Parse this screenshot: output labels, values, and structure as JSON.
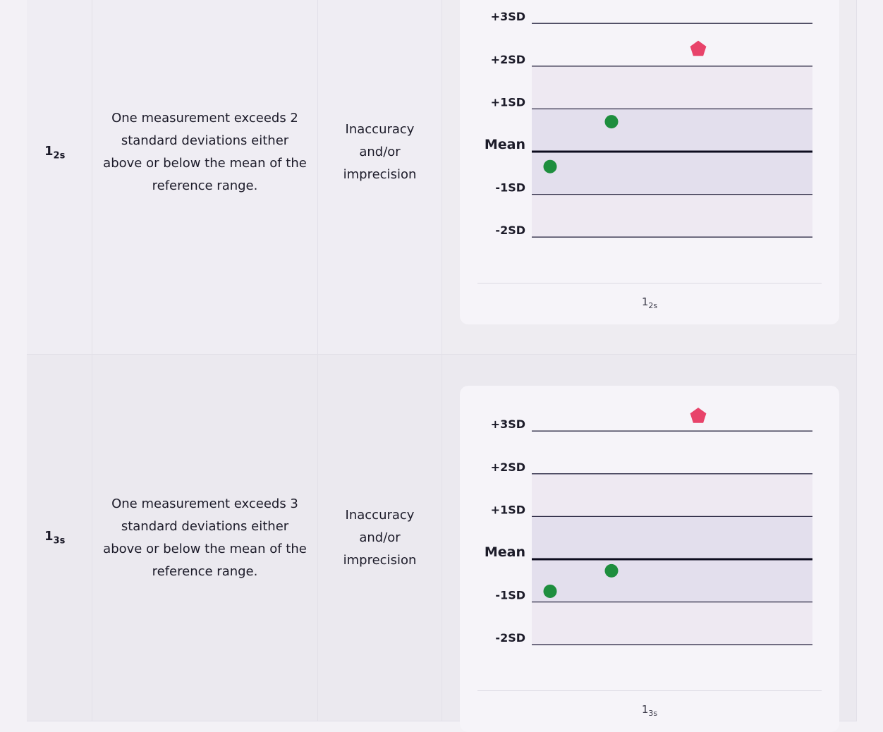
{
  "table": {
    "rows": [
      {
        "rule": {
          "base": "1",
          "sub": "2s"
        },
        "description": "One measurement exceeds 2 standard deviations either above or below the mean of the reference range.",
        "error": "Inaccuracy and/or imprecision",
        "chart": {
          "yticks": [
            {
              "value": 3,
              "label": "+3SD"
            },
            {
              "value": 2,
              "label": "+2SD"
            },
            {
              "value": 1,
              "label": "+1SD"
            },
            {
              "value": 0,
              "label": "Mean"
            },
            {
              "value": -1,
              "label": "-1SD"
            },
            {
              "value": -2,
              "label": "-2SD"
            }
          ],
          "values": [
            -0.35,
            0.7,
            2.4
          ],
          "colors": [
            "#1e8e3e",
            "#1e8e3e",
            "#e8436a"
          ],
          "shapes": [
            "circle",
            "circle",
            "pentagon"
          ],
          "caption": {
            "base": "1",
            "sub": "2s"
          }
        }
      },
      {
        "rule": {
          "base": "1",
          "sub": "3s"
        },
        "description": "One measurement exceeds 3 standard deviations either above or below the mean of the reference range.",
        "error": "Inaccuracy and/or imprecision",
        "chart": {
          "yticks": [
            {
              "value": 3,
              "label": "+3SD"
            },
            {
              "value": 2,
              "label": "+2SD"
            },
            {
              "value": 1,
              "label": "+1SD"
            },
            {
              "value": 0,
              "label": "Mean"
            },
            {
              "value": -1,
              "label": "-1SD"
            },
            {
              "value": -2,
              "label": "-2SD"
            }
          ],
          "values": [
            -0.75,
            -0.27,
            3.35
          ],
          "colors": [
            "#1e8e3e",
            "#1e8e3e",
            "#e8436a"
          ],
          "shapes": [
            "circle",
            "circle",
            "pentagon"
          ],
          "caption": {
            "base": "1",
            "sub": "3s"
          }
        }
      }
    ]
  }
}
